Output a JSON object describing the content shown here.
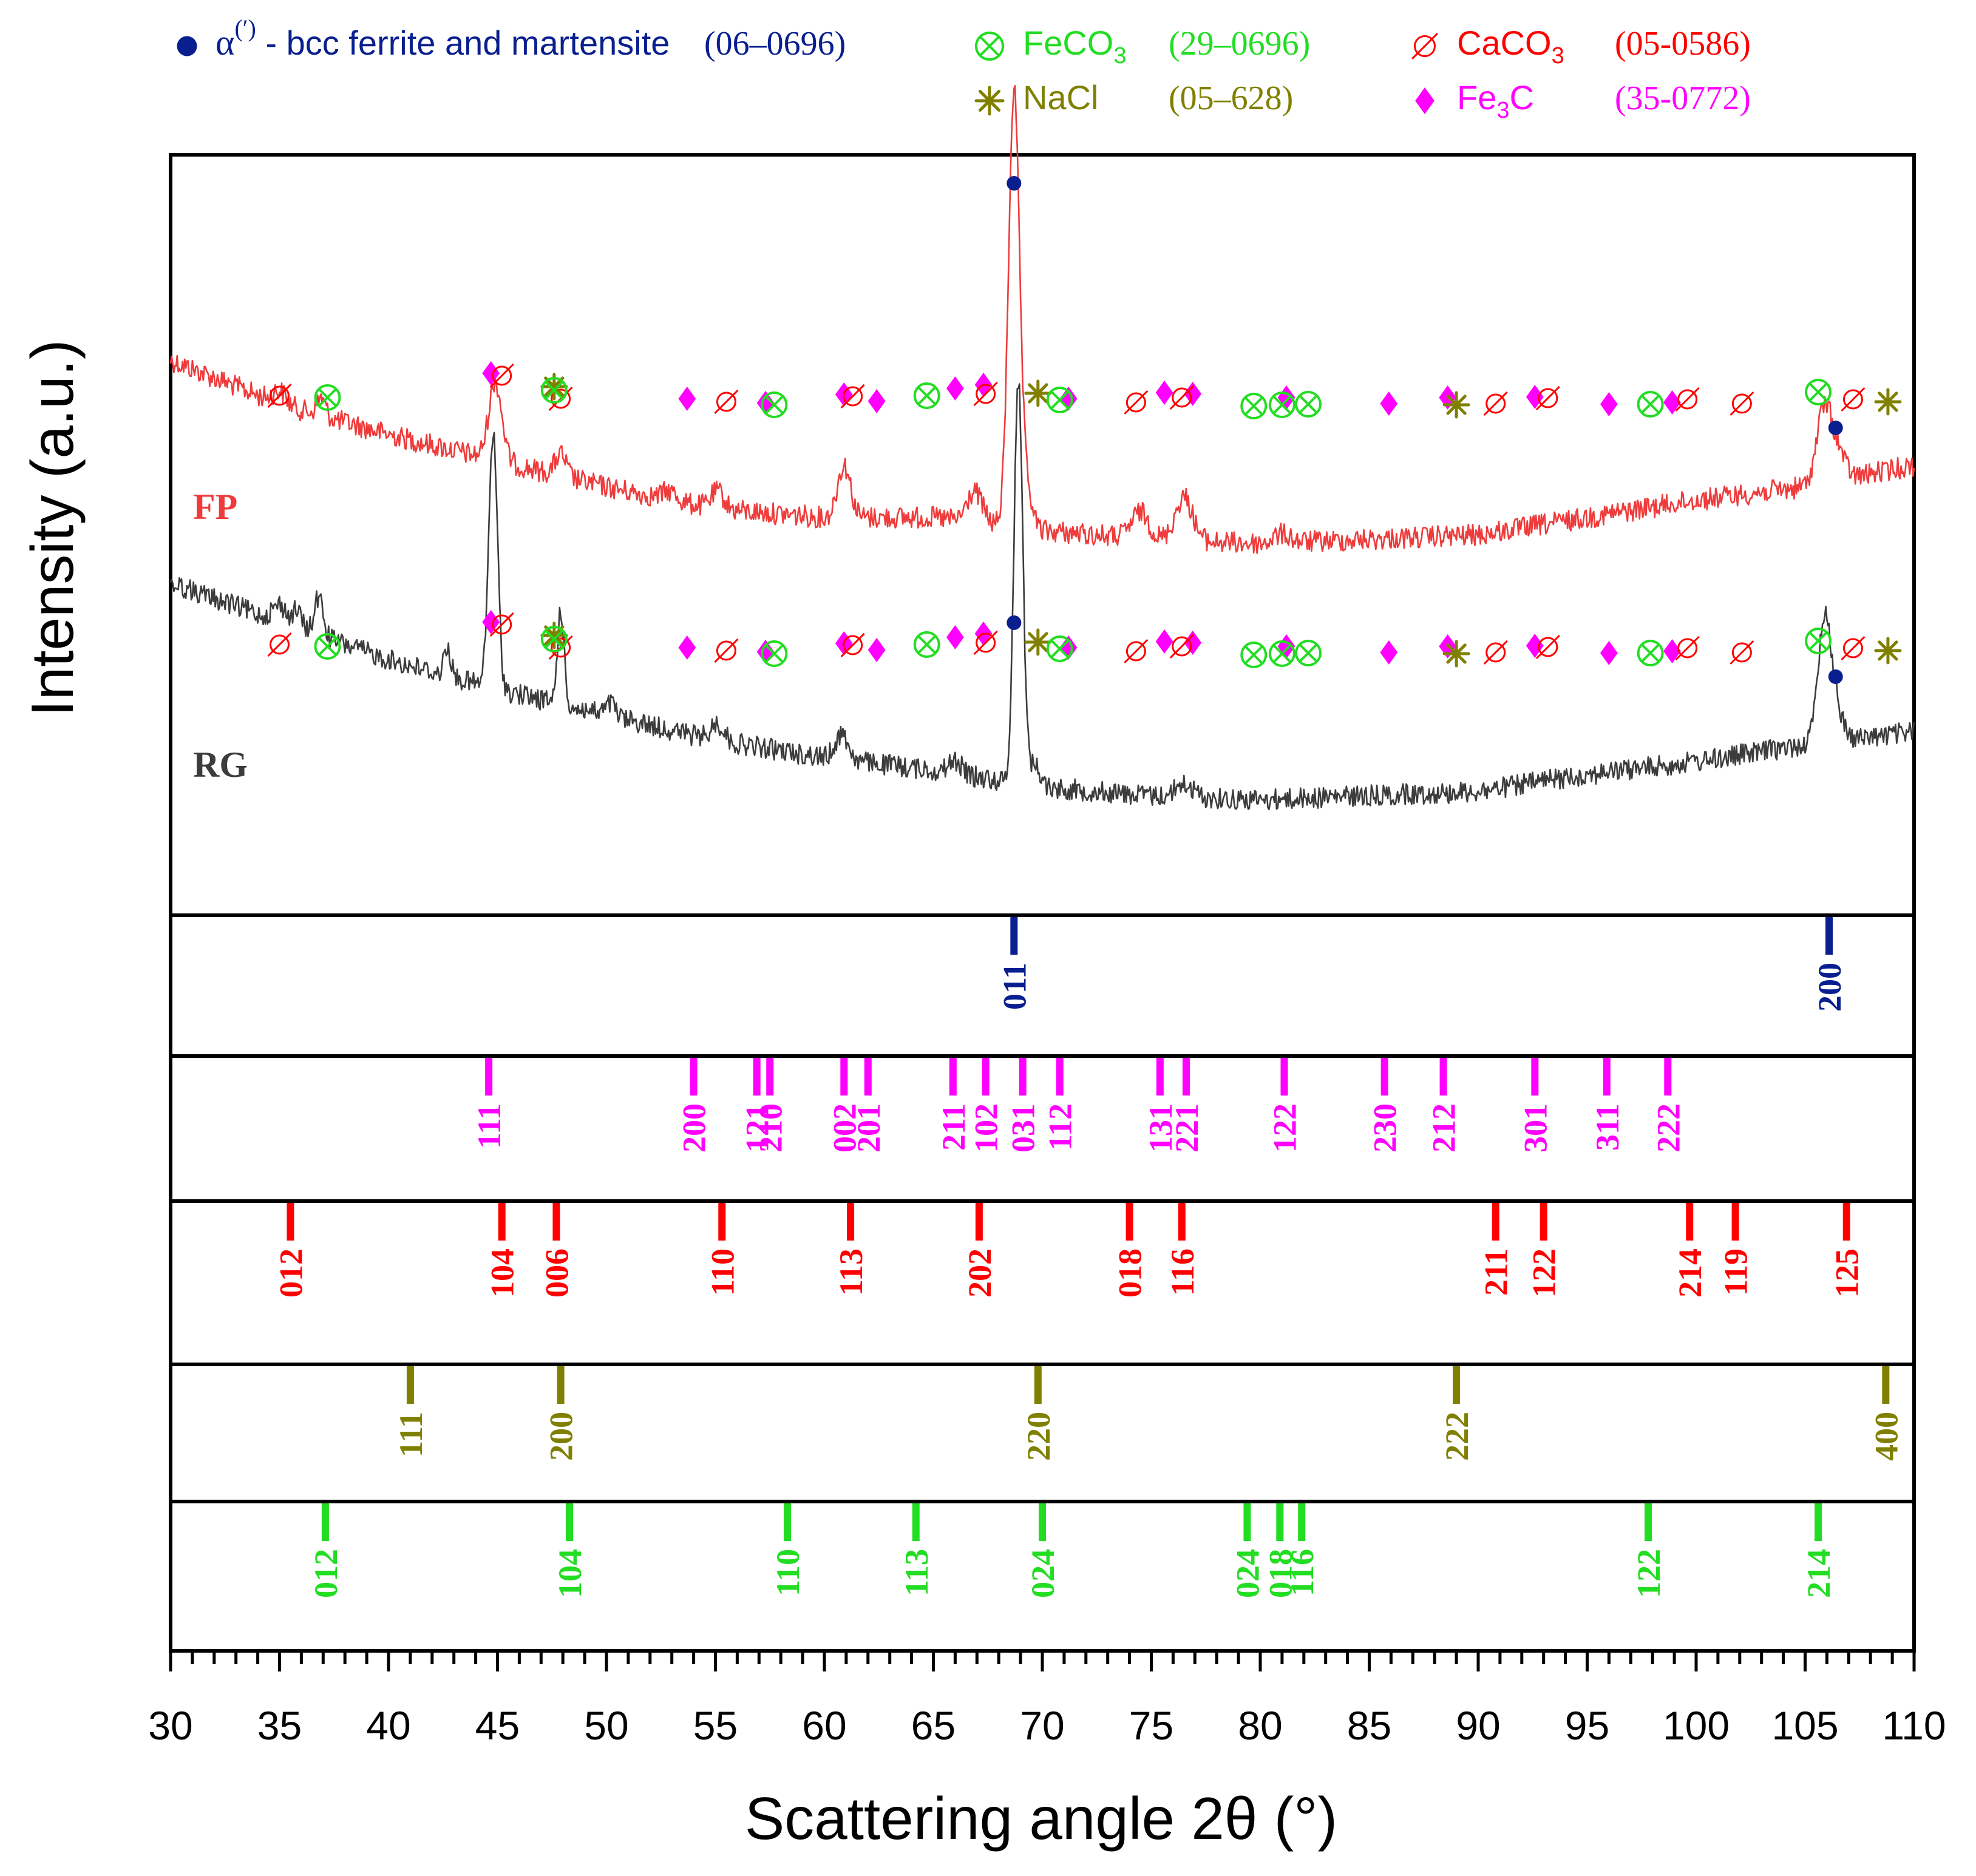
{
  "chart_data": {
    "type": "line",
    "xlabel": "Scattering angle 2θ (°)",
    "ylabel": "Intensity (a.u.)",
    "xlim": [
      30,
      110
    ],
    "x_ticks": [
      "30",
      "35",
      "40",
      "45",
      "50",
      "55",
      "60",
      "65",
      "70",
      "75",
      "80",
      "85",
      "90",
      "95",
      "100",
      "105",
      "110"
    ],
    "colors": {
      "alpha": "#0a1f8f",
      "fe3c": "#ff00ff",
      "caco3": "#ff0000",
      "nacl": "#808000",
      "feco3": "#22dd22",
      "fp": "#ef3b3b",
      "rg": "#3c3c3c"
    },
    "legend": [
      {
        "key": "alpha",
        "symbol": "dot",
        "greek": "α",
        "sup": "(′)",
        "label": " - bcc ferrite and martensite",
        "code": "(06–0696)"
      },
      {
        "key": "feco3",
        "symbol": "otimes",
        "label": "FeCO",
        "sub": "3",
        "code": "(29–0696)"
      },
      {
        "key": "caco3",
        "symbol": "slash",
        "label": "CaCO",
        "sub": "3",
        "code": "(05-0586)"
      },
      {
        "key": "nacl",
        "symbol": "star",
        "label": "NaCl",
        "code": "(05–628)"
      },
      {
        "key": "fe3c",
        "symbol": "diamond",
        "label": "Fe",
        "sub": "3",
        "label2": "C",
        "code": "(35-0772)"
      }
    ],
    "series": [
      {
        "name": "FP",
        "color": "#ef3b3b",
        "baseline": [
          [
            30,
            38
          ],
          [
            35,
            48
          ],
          [
            40,
            55
          ],
          [
            45,
            61
          ],
          [
            50,
            67
          ],
          [
            55,
            72
          ],
          [
            60,
            74
          ],
          [
            65,
            74
          ],
          [
            70,
            77
          ],
          [
            75,
            79
          ],
          [
            80,
            80
          ],
          [
            85,
            79
          ],
          [
            90,
            78
          ],
          [
            95,
            74
          ],
          [
            100,
            70
          ],
          [
            105,
            67
          ],
          [
            110,
            62
          ]
        ],
        "peaks": [
          [
            35.0,
            3,
            0.3
          ],
          [
            36.9,
            4,
            0.2
          ],
          [
            44.9,
            18,
            0.3
          ],
          [
            47.9,
            5,
            0.25
          ],
          [
            52.9,
            2,
            0.3
          ],
          [
            55.1,
            4,
            0.3
          ],
          [
            60.9,
            12,
            0.3
          ],
          [
            66.9,
            7,
            0.35
          ],
          [
            68.7,
            100,
            0.25
          ],
          [
            69.3,
            8,
            0.25
          ],
          [
            74.5,
            6,
            0.4
          ],
          [
            76.5,
            10,
            0.4
          ],
          [
            81.0,
            2,
            0.4
          ],
          [
            105.9,
            18,
            0.35
          ],
          [
            106.6,
            5,
            0.3
          ]
        ]
      },
      {
        "name": "RG",
        "color": "#3c3c3c",
        "baseline": [
          [
            30,
            33
          ],
          [
            35,
            42
          ],
          [
            40,
            51
          ],
          [
            45,
            58
          ],
          [
            50,
            64
          ],
          [
            55,
            70
          ],
          [
            60,
            74
          ],
          [
            65,
            77
          ],
          [
            70,
            81
          ],
          [
            75,
            83
          ],
          [
            80,
            84
          ],
          [
            85,
            83
          ],
          [
            90,
            82
          ],
          [
            95,
            78
          ],
          [
            100,
            75
          ],
          [
            105,
            71
          ],
          [
            110,
            68
          ]
        ],
        "peaks": [
          [
            35.0,
            4,
            0.3
          ],
          [
            35.8,
            4,
            0.2
          ],
          [
            36.8,
            9,
            0.2
          ],
          [
            42.7,
            7,
            0.15
          ],
          [
            44.8,
            60,
            0.2
          ],
          [
            47.9,
            22,
            0.15
          ],
          [
            50.2,
            3,
            0.2
          ],
          [
            55.1,
            4,
            0.3
          ],
          [
            60.8,
            6,
            0.3
          ],
          [
            66.0,
            3,
            0.3
          ],
          [
            68.9,
            95,
            0.2
          ],
          [
            69.6,
            5,
            0.3
          ],
          [
            76.5,
            3,
            0.4
          ],
          [
            105.9,
            30,
            0.3
          ],
          [
            106.5,
            6,
            0.3
          ]
        ]
      }
    ],
    "markers": {
      "alpha": [
        68.7,
        106.4
      ],
      "fe3c": [
        [
          44.7,
          0
        ],
        [
          53.7,
          42
        ],
        [
          57.3,
          49
        ],
        [
          60.9,
          35
        ],
        [
          62.4,
          46
        ],
        [
          66.0,
          25
        ],
        [
          67.3,
          19
        ],
        [
          71.2,
          42
        ],
        [
          75.6,
          32
        ],
        [
          76.9,
          34
        ],
        [
          81.2,
          40
        ],
        [
          85.9,
          50
        ],
        [
          88.6,
          40
        ],
        [
          92.6,
          39
        ],
        [
          96.0,
          51
        ],
        [
          98.9,
          48
        ]
      ],
      "caco3": [
        [
          35.0,
          37
        ],
        [
          45.2,
          4
        ],
        [
          47.9,
          42
        ],
        [
          55.5,
          47
        ],
        [
          61.3,
          38
        ],
        [
          67.4,
          34
        ],
        [
          74.3,
          48
        ],
        [
          76.4,
          40
        ],
        [
          90.8,
          50
        ],
        [
          93.2,
          41
        ],
        [
          99.6,
          43
        ],
        [
          102.1,
          50
        ],
        [
          107.2,
          43
        ]
      ],
      "nacl": [
        [
          47.6,
          22
        ],
        [
          69.8,
          33
        ],
        [
          89.0,
          52
        ],
        [
          108.8,
          47
        ]
      ],
      "feco3": [
        [
          37.2,
          40
        ],
        [
          47.6,
          28
        ],
        [
          57.7,
          52
        ],
        [
          64.7,
          37
        ],
        [
          70.8,
          44
        ],
        [
          79.7,
          54
        ],
        [
          81.0,
          52
        ],
        [
          82.2,
          51
        ],
        [
          97.9,
          51
        ],
        [
          105.6,
          31
        ]
      ]
    },
    "reference_patterns": [
      {
        "key": "alpha",
        "lines": [
          [
            68.7,
            "011"
          ],
          [
            106.1,
            "200"
          ]
        ]
      },
      {
        "key": "fe3c",
        "lines": [
          [
            44.6,
            "111"
          ],
          [
            54.0,
            "200"
          ],
          [
            56.9,
            "121"
          ],
          [
            57.5,
            "210"
          ],
          [
            60.9,
            "002"
          ],
          [
            62.0,
            "201"
          ],
          [
            65.9,
            "211"
          ],
          [
            67.4,
            "102"
          ],
          [
            69.1,
            "031"
          ],
          [
            70.8,
            "112"
          ],
          [
            75.4,
            "131"
          ],
          [
            76.6,
            "221"
          ],
          [
            81.1,
            "122"
          ],
          [
            85.7,
            "230"
          ],
          [
            88.4,
            "212"
          ],
          [
            92.6,
            "301"
          ],
          [
            95.9,
            "311"
          ],
          [
            98.7,
            "222"
          ]
        ]
      },
      {
        "key": "caco3",
        "lines": [
          [
            35.5,
            "012"
          ],
          [
            45.2,
            "104"
          ],
          [
            47.7,
            "006"
          ],
          [
            55.3,
            "110"
          ],
          [
            61.2,
            "113"
          ],
          [
            67.1,
            "202"
          ],
          [
            74.0,
            "018"
          ],
          [
            76.4,
            "116"
          ],
          [
            90.8,
            "211"
          ],
          [
            93.0,
            "122"
          ],
          [
            99.7,
            "214"
          ],
          [
            101.8,
            "119"
          ],
          [
            106.9,
            "125"
          ]
        ]
      },
      {
        "key": "nacl",
        "lines": [
          [
            41.0,
            "111"
          ],
          [
            47.9,
            "200"
          ],
          [
            69.8,
            "220"
          ],
          [
            89.0,
            "222"
          ],
          [
            108.7,
            "400"
          ]
        ]
      },
      {
        "key": "feco3",
        "lines": [
          [
            37.1,
            "012"
          ],
          [
            48.3,
            "104"
          ],
          [
            58.3,
            "110"
          ],
          [
            64.2,
            "113"
          ],
          [
            70.0,
            "024"
          ],
          [
            79.4,
            "024"
          ],
          [
            80.9,
            "018"
          ],
          [
            81.9,
            "116"
          ],
          [
            97.8,
            "122"
          ],
          [
            105.6,
            "214"
          ]
        ]
      }
    ]
  }
}
